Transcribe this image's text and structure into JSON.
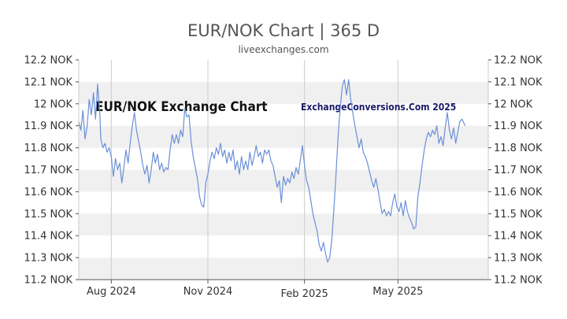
{
  "chart_data": {
    "type": "line",
    "title": "EUR/NOK Chart | 365 D",
    "subtitle": "liveexchanges.com",
    "watermark_left": "EUR/NOK Exchange Chart",
    "watermark_right": "ExchangeConversions.Com 2025",
    "ylim": [
      11.2,
      12.2
    ],
    "y_ticks": [
      {
        "value": 12.2,
        "label": "12.2 NOK"
      },
      {
        "value": 12.1,
        "label": "12.1 NOK"
      },
      {
        "value": 12.0,
        "label": "12 NOK"
      },
      {
        "value": 11.9,
        "label": "11.9 NOK"
      },
      {
        "value": 11.8,
        "label": "11.8 NOK"
      },
      {
        "value": 11.7,
        "label": "11.7 NOK"
      },
      {
        "value": 11.6,
        "label": "11.6 NOK"
      },
      {
        "value": 11.5,
        "label": "11.5 NOK"
      },
      {
        "value": 11.4,
        "label": "11.4 NOK"
      },
      {
        "value": 11.3,
        "label": "11.3 NOK"
      },
      {
        "value": 11.2,
        "label": "11.2 NOK"
      }
    ],
    "x_ticks": [
      {
        "day": 31,
        "label": "Aug 2024"
      },
      {
        "day": 123,
        "label": "Nov 2024"
      },
      {
        "day": 215,
        "label": "Feb 2025"
      },
      {
        "day": 304,
        "label": "May 2025"
      }
    ],
    "x_range_days": [
      0,
      390
    ],
    "grid": true,
    "colors": {
      "line": "#6a8fd8",
      "band": "#f0f0f0",
      "grid": "#cccccc",
      "axis": "#555555"
    },
    "series": [
      {
        "points": [
          [
            0,
            11.92
          ],
          [
            2,
            11.88
          ],
          [
            4,
            11.97
          ],
          [
            6,
            11.84
          ],
          [
            8,
            11.9
          ],
          [
            10,
            12.02
          ],
          [
            12,
            11.95
          ],
          [
            14,
            12.05
          ],
          [
            16,
            11.93
          ],
          [
            18,
            12.09
          ],
          [
            20,
            11.96
          ],
          [
            21,
            11.84
          ],
          [
            23,
            11.8
          ],
          [
            25,
            11.82
          ],
          [
            27,
            11.78
          ],
          [
            29,
            11.8
          ],
          [
            31,
            11.76
          ],
          [
            33,
            11.67
          ],
          [
            35,
            11.75
          ],
          [
            37,
            11.7
          ],
          [
            39,
            11.73
          ],
          [
            41,
            11.64
          ],
          [
            43,
            11.71
          ],
          [
            45,
            11.79
          ],
          [
            47,
            11.73
          ],
          [
            49,
            11.82
          ],
          [
            51,
            11.9
          ],
          [
            53,
            11.96
          ],
          [
            55,
            11.88
          ],
          [
            57,
            11.83
          ],
          [
            59,
            11.78
          ],
          [
            61,
            11.72
          ],
          [
            63,
            11.68
          ],
          [
            65,
            11.72
          ],
          [
            67,
            11.64
          ],
          [
            69,
            11.7
          ],
          [
            71,
            11.78
          ],
          [
            73,
            11.73
          ],
          [
            75,
            11.77
          ],
          [
            77,
            11.7
          ],
          [
            79,
            11.73
          ],
          [
            81,
            11.69
          ],
          [
            83,
            11.71
          ],
          [
            85,
            11.7
          ],
          [
            87,
            11.79
          ],
          [
            89,
            11.86
          ],
          [
            91,
            11.82
          ],
          [
            93,
            11.86
          ],
          [
            95,
            11.82
          ],
          [
            97,
            11.88
          ],
          [
            99,
            11.85
          ],
          [
            101,
            11.98
          ],
          [
            103,
            11.94
          ],
          [
            105,
            11.95
          ],
          [
            107,
            11.83
          ],
          [
            109,
            11.76
          ],
          [
            111,
            11.71
          ],
          [
            113,
            11.66
          ],
          [
            115,
            11.58
          ],
          [
            117,
            11.54
          ],
          [
            119,
            11.53
          ],
          [
            121,
            11.64
          ],
          [
            123,
            11.68
          ],
          [
            125,
            11.74
          ],
          [
            127,
            11.78
          ],
          [
            129,
            11.75
          ],
          [
            131,
            11.8
          ],
          [
            133,
            11.77
          ],
          [
            135,
            11.82
          ],
          [
            137,
            11.76
          ],
          [
            139,
            11.79
          ],
          [
            141,
            11.73
          ],
          [
            143,
            11.78
          ],
          [
            145,
            11.74
          ],
          [
            147,
            11.79
          ],
          [
            149,
            11.7
          ],
          [
            151,
            11.74
          ],
          [
            153,
            11.68
          ],
          [
            155,
            11.76
          ],
          [
            157,
            11.7
          ],
          [
            159,
            11.74
          ],
          [
            161,
            11.7
          ],
          [
            163,
            11.78
          ],
          [
            165,
            11.72
          ],
          [
            167,
            11.76
          ],
          [
            169,
            11.81
          ],
          [
            171,
            11.76
          ],
          [
            173,
            11.78
          ],
          [
            175,
            11.73
          ],
          [
            177,
            11.79
          ],
          [
            179,
            11.77
          ],
          [
            181,
            11.79
          ],
          [
            183,
            11.74
          ],
          [
            185,
            11.72
          ],
          [
            187,
            11.67
          ],
          [
            189,
            11.62
          ],
          [
            191,
            11.65
          ],
          [
            193,
            11.55
          ],
          [
            195,
            11.67
          ],
          [
            197,
            11.63
          ],
          [
            199,
            11.66
          ],
          [
            201,
            11.64
          ],
          [
            203,
            11.69
          ],
          [
            205,
            11.66
          ],
          [
            207,
            11.71
          ],
          [
            209,
            11.68
          ],
          [
            211,
            11.74
          ],
          [
            213,
            11.81
          ],
          [
            215,
            11.72
          ],
          [
            217,
            11.65
          ],
          [
            219,
            11.62
          ],
          [
            221,
            11.56
          ],
          [
            223,
            11.5
          ],
          [
            225,
            11.46
          ],
          [
            227,
            11.42
          ],
          [
            229,
            11.36
          ],
          [
            231,
            11.33
          ],
          [
            233,
            11.37
          ],
          [
            235,
            11.32
          ],
          [
            237,
            11.28
          ],
          [
            239,
            11.3
          ],
          [
            241,
            11.38
          ],
          [
            243,
            11.52
          ],
          [
            245,
            11.68
          ],
          [
            247,
            11.85
          ],
          [
            249,
            11.98
          ],
          [
            251,
            12.08
          ],
          [
            253,
            12.11
          ],
          [
            255,
            12.04
          ],
          [
            257,
            12.11
          ],
          [
            259,
            12.02
          ],
          [
            261,
            11.96
          ],
          [
            263,
            11.9
          ],
          [
            265,
            11.85
          ],
          [
            267,
            11.8
          ],
          [
            269,
            11.84
          ],
          [
            271,
            11.78
          ],
          [
            273,
            11.76
          ],
          [
            275,
            11.73
          ],
          [
            277,
            11.69
          ],
          [
            279,
            11.65
          ],
          [
            281,
            11.62
          ],
          [
            283,
            11.66
          ],
          [
            285,
            11.61
          ],
          [
            287,
            11.55
          ],
          [
            289,
            11.5
          ],
          [
            291,
            11.52
          ],
          [
            293,
            11.49
          ],
          [
            295,
            11.51
          ],
          [
            297,
            11.49
          ],
          [
            299,
            11.55
          ],
          [
            301,
            11.59
          ],
          [
            303,
            11.53
          ],
          [
            305,
            11.51
          ],
          [
            307,
            11.55
          ],
          [
            309,
            11.49
          ],
          [
            311,
            11.56
          ],
          [
            313,
            11.51
          ],
          [
            315,
            11.48
          ],
          [
            317,
            11.46
          ],
          [
            319,
            11.43
          ],
          [
            321,
            11.44
          ],
          [
            323,
            11.58
          ],
          [
            325,
            11.64
          ],
          [
            327,
            11.72
          ],
          [
            329,
            11.79
          ],
          [
            331,
            11.84
          ],
          [
            333,
            11.87
          ],
          [
            335,
            11.85
          ],
          [
            337,
            11.88
          ],
          [
            339,
            11.86
          ],
          [
            341,
            11.9
          ],
          [
            343,
            11.82
          ],
          [
            345,
            11.85
          ],
          [
            347,
            11.81
          ],
          [
            349,
            11.89
          ],
          [
            351,
            11.96
          ],
          [
            353,
            11.88
          ],
          [
            355,
            11.84
          ],
          [
            357,
            11.89
          ],
          [
            359,
            11.82
          ],
          [
            361,
            11.87
          ],
          [
            363,
            11.92
          ],
          [
            365,
            11.93
          ],
          [
            368,
            11.9
          ]
        ]
      }
    ]
  }
}
